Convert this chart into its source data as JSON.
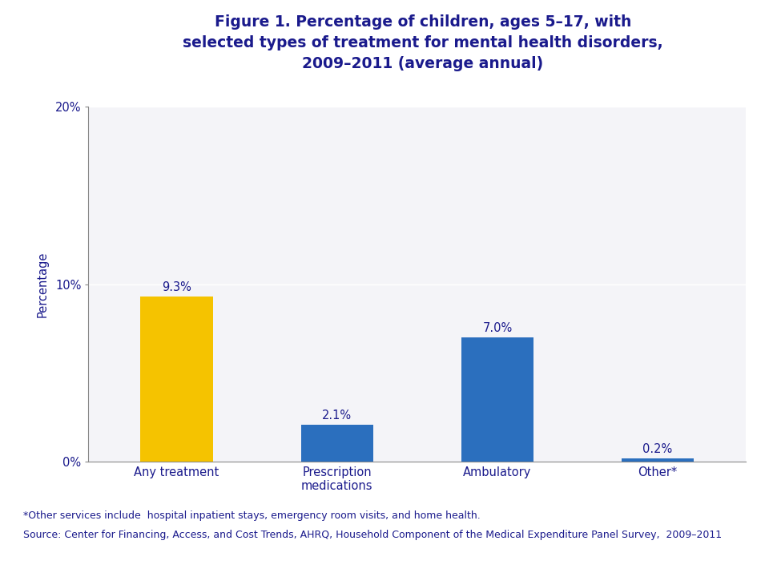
{
  "title": "Figure 1. Percentage of children, ages 5–17, with\nselected types of treatment for mental health disorders,\n2009–2011 (average annual)",
  "categories": [
    "Any treatment",
    "Prescription\nmedications",
    "Ambulatory",
    "Other*"
  ],
  "values": [
    9.3,
    2.1,
    7.0,
    0.2
  ],
  "labels": [
    "9.3%",
    "2.1%",
    "7.0%",
    "0.2%"
  ],
  "bar_colors": [
    "#F5C300",
    "#2B6FBE",
    "#2B6FBE",
    "#2B6FBE"
  ],
  "ylabel": "Percentage",
  "ylim": [
    0,
    20
  ],
  "yticks": [
    0,
    10,
    20
  ],
  "yticklabels": [
    "0%",
    "10%",
    "20%"
  ],
  "header_bg": "#D0D0D8",
  "body_bg": "#FFFFFF",
  "plot_bg": "#F4F4F8",
  "title_color": "#1A1A8C",
  "axis_color": "#1A1A8C",
  "label_color": "#1A1A8C",
  "tick_color": "#1A1A8C",
  "separator_color": "#9999AA",
  "footnote1": "*Other services include  hospital inpatient stays, emergency room visits, and home health.",
  "footnote2": "Source: Center for Financing, Access, and Cost Trends, AHRQ, Household Component of the Medical Expenditure Panel Survey,  2009–2011",
  "title_fontsize": 13.5,
  "label_fontsize": 10.5,
  "tick_fontsize": 10.5,
  "ylabel_fontsize": 10.5,
  "footnote_fontsize": 9,
  "bar_width": 0.45
}
